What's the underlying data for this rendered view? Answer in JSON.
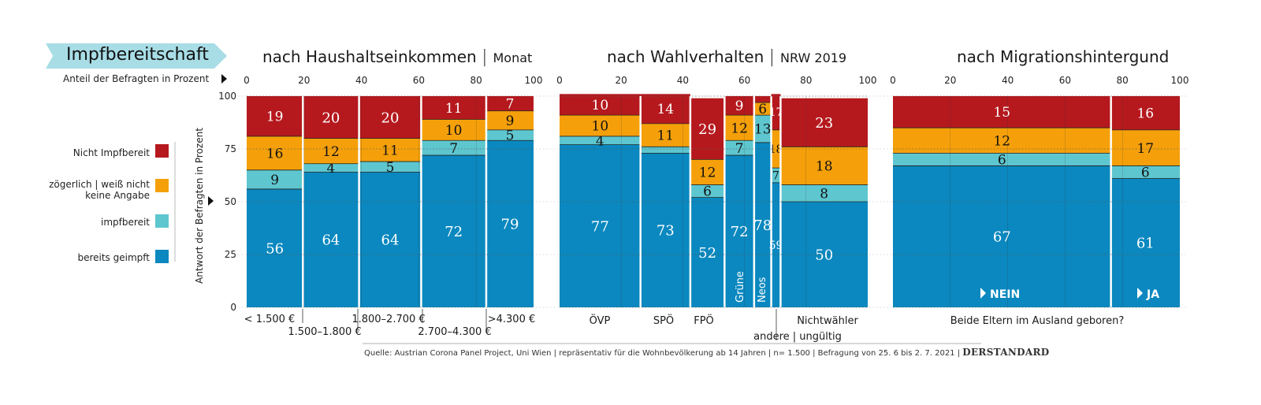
{
  "banner": "Impfbereitschaft",
  "anteil_label": "Anteil der Befragten in Prozent",
  "y_axis_label": "Antwort der Befragten in Prozent",
  "legend": [
    {
      "label": "Nicht Impfbereit",
      "color": "#b5191e"
    },
    {
      "label": "zögerlich | weiß nicht",
      "label2": "keine Angabe",
      "color": "#f5a00a"
    },
    {
      "label": "impfbereit",
      "color": "#5ec6cf"
    },
    {
      "label": "bereits geimpft",
      "color": "#0a88bf"
    }
  ],
  "source": "Quelle: Austrian Corona Panel Project, Uni Wien | repräsentativ für die Wohnbevölkerung ab 14 Jahren | n= 1.500 | Befragung von 25. 6 bis 2. 7. 2021 |",
  "publisher": "DERSTANDARD",
  "chart_data": [
    {
      "type": "bar",
      "title": "nach Haushaltseinkommen",
      "subtitle": "Monat",
      "x_ticks": [
        "0",
        "20",
        "40",
        "60",
        "80",
        "100"
      ],
      "y_ticks": [
        "0",
        "25",
        "50",
        "75",
        "100"
      ],
      "ylim": [
        0,
        100
      ],
      "categories": [
        "< 1.500 €",
        "1.500–1.800 €",
        "1.800–2.700 €",
        "2.700–4.300 €",
        ">4.300 €"
      ],
      "widths": [
        19,
        19,
        21,
        22,
        16
      ],
      "series": [
        {
          "name": "bereits geimpft",
          "values": [
            56,
            64,
            64,
            72,
            79
          ]
        },
        {
          "name": "impfbereit",
          "values": [
            9,
            4,
            5,
            7,
            5
          ]
        },
        {
          "name": "zögerlich | weiß nicht keine Angabe",
          "values": [
            16,
            12,
            11,
            10,
            9
          ]
        },
        {
          "name": "Nicht Impfbereit",
          "values": [
            19,
            20,
            20,
            11,
            7
          ]
        }
      ]
    },
    {
      "type": "bar",
      "title": "nach Wahlverhalten",
      "subtitle": "NRW 2019",
      "x_ticks": [
        "0",
        "20",
        "40",
        "60",
        "80",
        "100"
      ],
      "categories": [
        "ÖVP",
        "SPÖ",
        "FPÖ",
        "Grüne",
        "Neos",
        "andere | ungültig",
        "Nichtwähler"
      ],
      "widths": [
        26,
        16,
        11,
        9.5,
        5.5,
        3,
        28
      ],
      "series": [
        {
          "name": "bereits geimpft",
          "values": [
            77,
            73,
            52,
            72,
            78,
            59,
            50
          ]
        },
        {
          "name": "impfbereit",
          "values": [
            4,
            3,
            6,
            7,
            13,
            7,
            8
          ]
        },
        {
          "name": "zögerlich | weiß nicht keine Angabe",
          "values": [
            10,
            11,
            12,
            12,
            6,
            18,
            18
          ]
        },
        {
          "name": "Nicht Impfbereit",
          "values": [
            10,
            14,
            29,
            9,
            3,
            17,
            23
          ]
        }
      ]
    },
    {
      "type": "bar",
      "title": "nach Migrationshintergund",
      "subtitle": "",
      "x_ticks": [
        "0",
        "20",
        "40",
        "60",
        "80",
        "100"
      ],
      "categories": [
        "NEIN",
        "JA"
      ],
      "question": "Beide Eltern im Ausland geboren?",
      "widths": [
        76,
        24
      ],
      "series": [
        {
          "name": "bereits geimpft",
          "values": [
            67,
            61
          ]
        },
        {
          "name": "impfbereit",
          "values": [
            6,
            6
          ]
        },
        {
          "name": "zögerlich | weiß nicht keine Angabe",
          "values": [
            12,
            17
          ]
        },
        {
          "name": "Nicht Impfbereit",
          "values": [
            15,
            16
          ]
        }
      ]
    }
  ]
}
